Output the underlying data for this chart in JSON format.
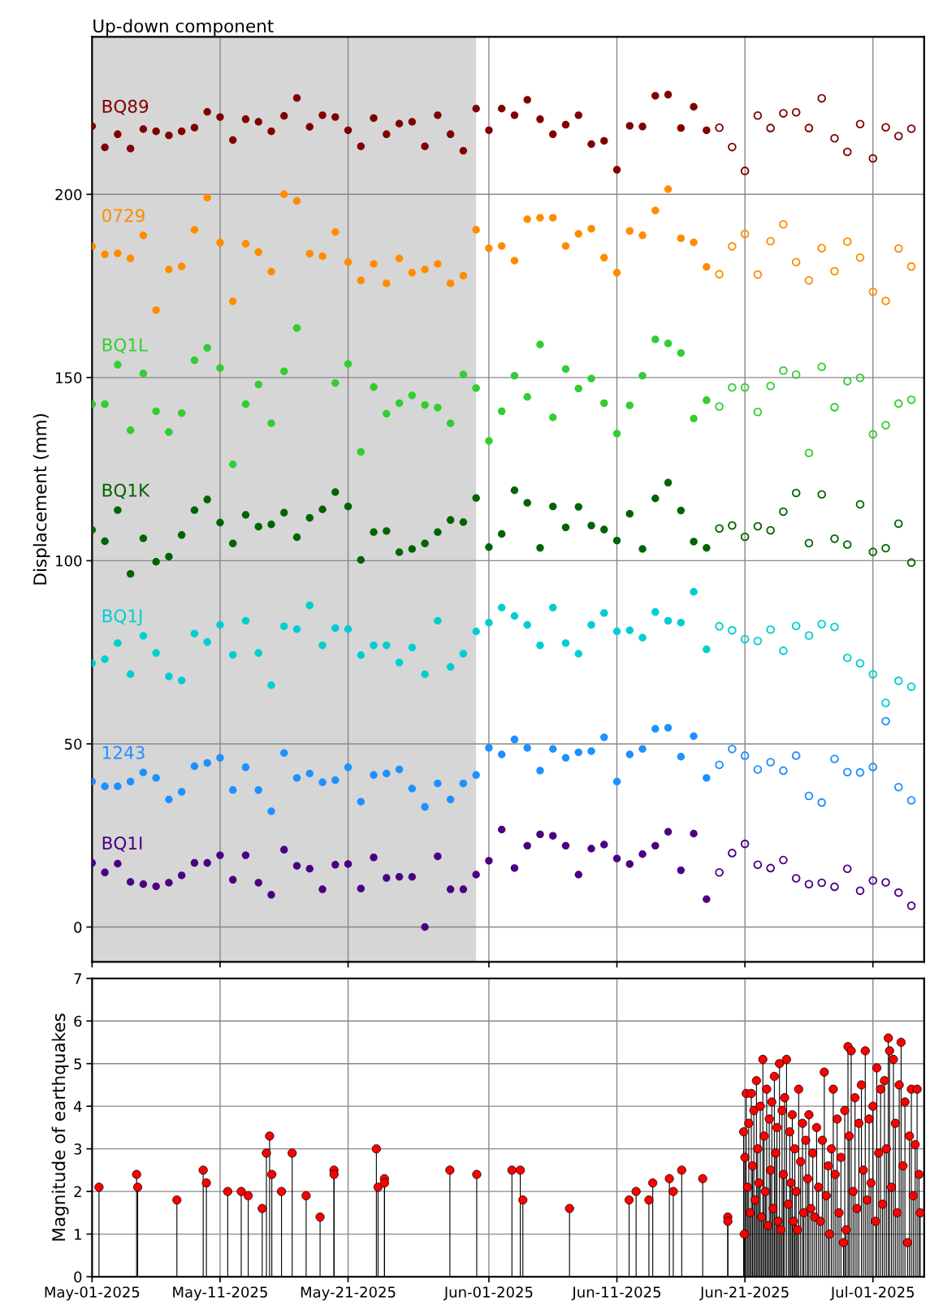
{
  "chart_data": [
    {
      "type": "scatter",
      "title": "Up-down component",
      "ylabel": "Displacement (mm)",
      "marker": "circle",
      "grid": true,
      "tick_labels": "y",
      "x": [
        "2025-05-01",
        "2025-05-02",
        "2025-05-03",
        "2025-05-04",
        "2025-05-05",
        "2025-05-06",
        "2025-05-07",
        "2025-05-08",
        "2025-05-09",
        "2025-05-10",
        "2025-05-11",
        "2025-05-12",
        "2025-05-13",
        "2025-05-14",
        "2025-05-15",
        "2025-05-16",
        "2025-05-17",
        "2025-05-18",
        "2025-05-19",
        "2025-05-20",
        "2025-05-21",
        "2025-05-22",
        "2025-05-23",
        "2025-05-24",
        "2025-05-25",
        "2025-05-26",
        "2025-05-27",
        "2025-05-28",
        "2025-05-29",
        "2025-05-30",
        "2025-05-31",
        "2025-06-01",
        "2025-06-02",
        "2025-06-03",
        "2025-06-04",
        "2025-06-05",
        "2025-06-06",
        "2025-06-07",
        "2025-06-08",
        "2025-06-09",
        "2025-06-10",
        "2025-06-11",
        "2025-06-12",
        "2025-06-13",
        "2025-06-14",
        "2025-06-15",
        "2025-06-16",
        "2025-06-17",
        "2025-06-18"
      ],
      "series": [
        {
          "name": "BQ89",
          "color": "#800000",
          "values": [
            218.6,
            212.8,
            216.4,
            212.5,
            217.8,
            217.2,
            216.1,
            217.2,
            218.2,
            222.5,
            221.1,
            214.8,
            220.5,
            219.8,
            217.2,
            221.4,
            226.3,
            218.4,
            221.6,
            221.1,
            217.5,
            213.1,
            220.8,
            216.4,
            219.3,
            219.8,
            213.1,
            221.6,
            216.4,
            211.9,
            223.4,
            217.5,
            223.4,
            221.6,
            225.8,
            220.5,
            216.4,
            219.0,
            221.6,
            213.7,
            214.6,
            206.7,
            218.7,
            218.5,
            226.9,
            227.2,
            218.1,
            223.9,
            217.5
          ]
        },
        {
          "color": "#800000",
          "x": [
            "2025-06-19",
            "2025-06-20",
            "2025-06-21",
            "2025-06-22",
            "2025-06-23",
            "2025-06-24",
            "2025-06-25",
            "2025-06-26",
            "2025-06-27",
            "2025-06-28",
            "2025-06-29",
            "2025-06-30",
            "2025-07-01",
            "2025-07-02",
            "2025-07-03",
            "2025-07-04"
          ],
          "values": [
            218.2,
            212.9,
            206.4,
            221.5,
            218.1,
            222.1,
            222.4,
            218.1,
            226.2,
            215.3,
            211.6,
            219.2,
            209.8,
            218.3,
            215.9,
            217.9
          ]
        },
        {
          "name": "0729",
          "color": "#ff8c00",
          "values": [
            185.8,
            183.6,
            183.9,
            182.5,
            188.8,
            168.4,
            179.5,
            180.3,
            190.3,
            199.1,
            186.8,
            170.8,
            186.5,
            184.2,
            178.9,
            200.0,
            198.2,
            183.8,
            183.1,
            189.7,
            181.5,
            176.5,
            181.0,
            175.7,
            182.5,
            178.6,
            179.5,
            181.0,
            175.7,
            177.8,
            190.3,
            185.3,
            185.9,
            181.9,
            193.2,
            193.6,
            193.6,
            185.9,
            189.2,
            190.6,
            182.7,
            178.6,
            190.0,
            188.8,
            195.6,
            201.4,
            188.0,
            186.9,
            180.2
          ]
        },
        {
          "color": "#ff8c00",
          "x": [
            "2025-06-19",
            "2025-06-20",
            "2025-06-21",
            "2025-06-22",
            "2025-06-23",
            "2025-06-24",
            "2025-06-25",
            "2025-06-26",
            "2025-06-27",
            "2025-06-28",
            "2025-06-29",
            "2025-06-30",
            "2025-07-01",
            "2025-07-02",
            "2025-07-03",
            "2025-07-04"
          ],
          "values": [
            178.2,
            185.8,
            189.2,
            178.1,
            187.2,
            191.8,
            181.5,
            176.5,
            185.3,
            179.0,
            187.1,
            182.7,
            173.4,
            170.9,
            185.2,
            180.3
          ]
        },
        {
          "name": "BQ1L",
          "color": "#32cd32",
          "values": [
            142.7,
            142.7,
            153.5,
            135.6,
            151.1,
            140.8,
            135.1,
            140.3,
            154.7,
            158.1,
            152.6,
            126.3,
            142.7,
            148.1,
            137.5,
            151.7,
            163.5,
            null,
            null,
            148.5,
            153.7,
            129.7,
            147.4,
            140.1,
            143.0,
            145.1,
            142.5,
            141.8,
            137.5,
            150.8,
            147.1,
            132.7,
            140.8,
            150.5,
            144.7,
            159.0,
            139.1,
            152.3,
            147.0,
            149.7,
            143.0,
            134.7,
            142.4,
            150.5,
            160.4,
            159.3,
            156.7,
            138.8,
            143.8
          ]
        },
        {
          "color": "#32cd32",
          "x": [
            "2025-06-19",
            "2025-06-20",
            "2025-06-21",
            "2025-06-22",
            "2025-06-23",
            "2025-06-24",
            "2025-06-25",
            "2025-06-26",
            "2025-06-27",
            "2025-06-28",
            "2025-06-29",
            "2025-06-30",
            "2025-07-01",
            "2025-07-02",
            "2025-07-03",
            "2025-07-04"
          ],
          "values": [
            142.1,
            147.3,
            147.3,
            140.6,
            147.7,
            151.9,
            150.8,
            129.4,
            152.9,
            141.9,
            149.0,
            149.9,
            134.5,
            137.0,
            142.9,
            143.9
          ]
        },
        {
          "name": "BQ1K",
          "color": "#006400",
          "values": [
            108.4,
            105.3,
            113.8,
            96.4,
            106.1,
            99.7,
            101.1,
            107.0,
            113.8,
            116.7,
            110.4,
            104.7,
            112.5,
            109.3,
            109.9,
            113.1,
            106.4,
            111.7,
            114.0,
            118.7,
            114.8,
            100.2,
            107.8,
            108.1,
            102.3,
            103.2,
            104.7,
            107.8,
            111.1,
            110.5,
            117.1,
            103.7,
            107.3,
            119.2,
            115.8,
            103.5,
            114.8,
            109.1,
            114.7,
            109.6,
            108.5,
            105.5,
            112.8,
            103.2,
            117.0,
            121.3,
            113.7,
            105.2,
            103.5
          ]
        },
        {
          "color": "#006400",
          "x": [
            "2025-06-19",
            "2025-06-20",
            "2025-06-21",
            "2025-06-22",
            "2025-06-23",
            "2025-06-24",
            "2025-06-25",
            "2025-06-26",
            "2025-06-27",
            "2025-06-28",
            "2025-06-29",
            "2025-06-30",
            "2025-07-01",
            "2025-07-02",
            "2025-07-03",
            "2025-07-04"
          ],
          "values": [
            108.8,
            109.6,
            106.5,
            109.4,
            108.3,
            113.4,
            118.5,
            104.8,
            118.1,
            106.0,
            104.4,
            115.4,
            102.4,
            103.4,
            110.1,
            99.5
          ]
        },
        {
          "name": "BQ1J",
          "color": "#00ced1",
          "values": [
            72.0,
            73.1,
            77.5,
            69.0,
            79.5,
            74.8,
            68.4,
            67.3,
            80.1,
            77.8,
            82.5,
            74.3,
            83.6,
            74.8,
            66.0,
            82.1,
            81.3,
            87.8,
            76.9,
            81.6,
            81.3,
            74.2,
            76.9,
            76.9,
            72.2,
            76.3,
            69.0,
            83.6,
            71.0,
            74.6,
            80.7,
            83.1,
            87.2,
            84.9,
            82.5,
            76.9,
            87.2,
            77.5,
            74.6,
            82.5,
            85.7,
            80.7,
            81.0,
            79.0,
            86.0,
            83.6,
            83.1,
            91.5,
            75.8
          ]
        },
        {
          "color": "#00ced1",
          "x": [
            "2025-06-19",
            "2025-06-20",
            "2025-06-21",
            "2025-06-22",
            "2025-06-23",
            "2025-06-24",
            "2025-06-25",
            "2025-06-26",
            "2025-06-27",
            "2025-06-28",
            "2025-06-29",
            "2025-06-30",
            "2025-07-01",
            "2025-07-02",
            "2025-07-03",
            "2025-07-04"
          ],
          "values": [
            82.1,
            81.0,
            78.6,
            78.1,
            81.2,
            75.4,
            82.2,
            79.6,
            82.7,
            81.9,
            73.5,
            72.0,
            69.0,
            61.2,
            67.2,
            65.6
          ]
        },
        {
          "name": "1243",
          "color": "#1e90ff",
          "values": [
            39.7,
            38.4,
            38.4,
            39.7,
            42.2,
            40.7,
            34.8,
            36.9,
            43.9,
            44.8,
            46.2,
            37.4,
            43.6,
            37.4,
            31.6,
            47.5,
            40.7,
            41.9,
            39.5,
            40.1,
            43.6,
            34.2,
            41.5,
            41.9,
            43.0,
            37.8,
            32.8,
            39.2,
            34.8,
            39.2,
            41.5,
            48.9,
            47.1,
            51.2,
            48.9,
            42.7,
            48.6,
            46.2,
            47.7,
            48.0,
            51.8,
            39.7,
            47.1,
            48.6,
            54.1,
            54.4,
            46.5,
            52.1,
            40.7
          ]
        },
        {
          "color": "#1e90ff",
          "x": [
            "2025-06-19",
            "2025-06-20",
            "2025-06-21",
            "2025-06-22",
            "2025-06-23",
            "2025-06-24",
            "2025-06-25",
            "2025-06-26",
            "2025-06-27",
            "2025-06-28",
            "2025-06-29",
            "2025-06-30",
            "2025-07-01",
            "2025-07-02",
            "2025-07-03",
            "2025-07-04"
          ],
          "values": [
            44.3,
            48.6,
            46.8,
            43.0,
            45.0,
            42.7,
            46.8,
            35.8,
            34.0,
            45.9,
            42.3,
            42.2,
            43.7,
            56.2,
            38.2,
            34.6
          ]
        },
        {
          "name": "BQ1I",
          "color": "#4b0082",
          "values": [
            17.5,
            14.9,
            17.3,
            12.3,
            11.7,
            11.1,
            12.1,
            14.1,
            17.5,
            17.5,
            19.6,
            12.9,
            19.6,
            12.1,
            8.8,
            21.1,
            16.7,
            15.9,
            10.3,
            17.0,
            17.2,
            10.5,
            19.0,
            13.4,
            13.7,
            13.7,
            0.0,
            19.3,
            10.3,
            10.3,
            14.3,
            18.1,
            26.6,
            16.1,
            22.2,
            25.3,
            24.9,
            22.2,
            14.3,
            21.4,
            22.5,
            18.7,
            17.2,
            19.9,
            22.2,
            26.0,
            15.5,
            25.5,
            7.6
          ]
        },
        {
          "color": "#4b0082",
          "x": [
            "2025-06-19",
            "2025-06-20",
            "2025-06-21",
            "2025-06-22",
            "2025-06-23",
            "2025-06-24",
            "2025-06-25",
            "2025-06-26",
            "2025-06-27",
            "2025-06-28",
            "2025-06-29",
            "2025-06-30",
            "2025-07-01",
            "2025-07-02",
            "2025-07-03",
            "2025-07-04"
          ],
          "values": [
            14.9,
            20.2,
            22.7,
            17.0,
            16.1,
            18.3,
            13.3,
            11.7,
            12.1,
            11.0,
            15.9,
            9.9,
            12.7,
            12.2,
            9.4,
            5.8
          ]
        }
      ],
      "bands": [
        {
          "axis": "x",
          "from": "2025-05-01",
          "to": "2025-05-31",
          "color": "#d6d6d6"
        }
      ],
      "xlim": [
        "2025-05-01",
        "2025-07-05"
      ],
      "ylim": [
        -9.5,
        243
      ],
      "xticks": [
        {
          "value": "2025-05-01",
          "label": null
        },
        {
          "value": "2025-05-11",
          "label": null
        },
        {
          "value": "2025-05-21",
          "label": null
        },
        {
          "value": "2025-06-01",
          "label": null
        },
        {
          "value": "2025-06-11",
          "label": null
        },
        {
          "value": "2025-06-21",
          "label": null
        },
        {
          "value": "2025-07-01",
          "label": null
        }
      ],
      "yticks": [
        0,
        50,
        100,
        150,
        200
      ]
    },
    {
      "type": "lollipop",
      "ylabel": "Magnitude of earthquakes",
      "marker": "circle",
      "grid": true,
      "color": "#ff0000",
      "x": [
        "2025-05-01T13:00",
        "2025-05-04T11:30",
        "2025-05-04T13:30",
        "2025-05-07T15:00",
        "2025-05-09T16:20",
        "2025-05-09T22:20",
        "2025-05-11T14:20",
        "2025-05-12T15:40",
        "2025-05-13T04:50",
        "2025-05-14T07:00",
        "2025-05-14T14:50",
        "2025-05-14T20:50",
        "2025-05-15T01:00",
        "2025-05-15T19:10",
        "2025-05-16T15:10",
        "2025-05-17T17:20",
        "2025-05-18T19:30",
        "2025-05-19T21:30",
        "2025-05-19T21:40",
        "2025-05-23T05:00",
        "2025-05-23T08:10",
        "2025-05-23T20:10",
        "2025-05-23T20:20",
        "2025-05-28T22:50",
        "2025-05-31T01:10",
        "2025-06-02T19:10",
        "2025-06-03T10:50",
        "2025-06-03T15:40",
        "2025-06-07T07:10",
        "2025-06-11T22:50",
        "2025-06-12T12:00",
        "2025-06-13T12:00",
        "2025-06-13T19:10",
        "2025-06-15T02:20",
        "2025-06-15T09:40",
        "2025-06-16T01:30",
        "2025-06-17T16:50",
        "2025-06-19T15:50",
        "2025-06-19T16:00",
        "2025-06-20T21:36",
        "2025-06-20T22:48",
        "2025-06-21T00:00",
        "2025-06-21T02:24",
        "2025-06-21T04:48",
        "2025-06-21T07:12",
        "2025-06-21T09:36",
        "2025-06-21T12:00",
        "2025-06-21T14:24",
        "2025-06-21T16:48",
        "2025-06-21T19:12",
        "2025-06-21T21:36",
        "2025-06-22T00:00",
        "2025-06-22T02:24",
        "2025-06-22T04:48",
        "2025-06-22T07:12",
        "2025-06-22T09:36",
        "2025-06-22T12:00",
        "2025-06-22T14:24",
        "2025-06-22T16:48",
        "2025-06-22T19:12",
        "2025-06-22T21:36",
        "2025-06-23T00:00",
        "2025-06-23T02:24",
        "2025-06-23T04:48",
        "2025-06-23T07:12",
        "2025-06-23T09:36",
        "2025-06-23T12:00",
        "2025-06-23T14:24",
        "2025-06-23T16:48",
        "2025-06-23T19:12",
        "2025-06-23T21:36",
        "2025-06-24T00:00",
        "2025-06-24T02:24",
        "2025-06-24T06:00",
        "2025-06-24T09:36",
        "2025-06-24T12:00",
        "2025-06-24T14:24",
        "2025-06-24T16:48",
        "2025-06-24T19:12",
        "2025-06-24T21:36",
        "2025-06-25T00:00",
        "2025-06-25T02:24",
        "2025-06-25T04:48",
        "2025-06-25T08:24",
        "2025-06-25T12:00",
        "2025-06-25T14:24",
        "2025-06-25T18:00",
        "2025-06-25T21:36",
        "2025-06-26T00:00",
        "2025-06-26T03:36",
        "2025-06-26T07:12",
        "2025-06-26T10:48",
        "2025-06-26T14:24",
        "2025-06-26T18:00",
        "2025-06-26T21:36",
        "2025-06-27T01:12",
        "2025-06-27T04:48",
        "2025-06-27T08:24",
        "2025-06-27T12:00",
        "2025-06-27T14:24",
        "2025-06-27T18:00",
        "2025-06-27T21:36",
        "2025-06-28T01:12",
        "2025-06-28T04:48",
        "2025-06-28T08:24",
        "2025-06-28T12:00",
        "2025-06-28T16:48",
        "2025-06-28T19:12",
        "2025-06-28T21:36",
        "2025-06-29T01:12",
        "2025-06-29T03:36",
        "2025-06-29T07:12",
        "2025-06-29T10:48",
        "2025-06-29T14:24",
        "2025-06-29T18:00",
        "2025-06-29T21:36",
        "2025-06-30T02:24",
        "2025-06-30T06:00",
        "2025-06-30T09:36",
        "2025-06-30T13:12",
        "2025-06-30T16:48",
        "2025-06-30T20:24",
        "2025-07-01T00:00",
        "2025-07-01T04:48",
        "2025-07-01T07:12",
        "2025-07-01T10:48",
        "2025-07-01T14:24",
        "2025-07-01T18:00",
        "2025-07-01T21:36",
        "2025-07-02T01:12",
        "2025-07-02T04:48",
        "2025-07-02T07:12",
        "2025-07-02T10:48",
        "2025-07-02T14:24",
        "2025-07-02T18:00",
        "2025-07-02T21:36",
        "2025-07-03T01:12",
        "2025-07-03T04:48",
        "2025-07-03T08:24",
        "2025-07-03T12:00",
        "2025-07-03T16:48",
        "2025-07-03T20:24",
        "2025-07-04T00:00",
        "2025-07-04T03:36",
        "2025-07-04T07:12",
        "2025-07-04T10:48",
        "2025-07-04T14:24",
        "2025-07-04T16:48"
      ],
      "values": [
        2.1,
        2.4,
        2.1,
        1.8,
        2.5,
        2.2,
        2.0,
        2.0,
        1.9,
        1.6,
        2.9,
        3.3,
        2.4,
        2.0,
        2.9,
        1.9,
        1.4,
        2.5,
        2.4,
        3.0,
        2.1,
        2.3,
        2.2,
        2.5,
        2.4,
        2.5,
        2.5,
        1.8,
        1.6,
        1.8,
        2.0,
        1.8,
        2.2,
        2.3,
        2.0,
        2.5,
        2.3,
        1.4,
        1.3,
        3.4,
        1.0,
        2.8,
        4.3,
        2.1,
        3.6,
        1.5,
        4.3,
        2.6,
        3.9,
        1.8,
        4.6,
        3.0,
        2.2,
        4.0,
        1.4,
        5.1,
        3.3,
        2.0,
        4.4,
        1.2,
        3.7,
        2.5,
        4.1,
        1.6,
        4.7,
        2.9,
        3.5,
        1.3,
        5.0,
        1.1,
        3.9,
        2.4,
        4.2,
        5.1,
        1.7,
        3.4,
        2.2,
        3.8,
        1.3,
        3.0,
        2.0,
        1.1,
        4.4,
        2.7,
        3.6,
        1.5,
        3.2,
        2.3,
        3.8,
        1.6,
        2.9,
        1.4,
        3.5,
        2.1,
        1.3,
        3.2,
        4.8,
        1.9,
        2.6,
        1.0,
        3.0,
        4.4,
        2.4,
        3.7,
        1.5,
        2.8,
        0.8,
        3.9,
        1.1,
        5.4,
        3.3,
        5.3,
        2.0,
        4.2,
        1.6,
        3.6,
        4.5,
        2.5,
        5.3,
        1.8,
        3.7,
        2.2,
        4.0,
        1.3,
        4.9,
        2.9,
        4.4,
        1.7,
        4.6,
        3.0,
        5.6,
        5.3,
        2.1,
        5.1,
        3.6,
        1.5,
        4.5,
        5.5,
        2.6,
        4.1,
        0.8,
        3.3,
        4.4,
        1.9,
        3.1,
        4.4,
        2.4,
        1.5
      ],
      "xlim": [
        "2025-05-01",
        "2025-07-05"
      ],
      "ylim": [
        0,
        7
      ],
      "xticks": [
        {
          "value": "2025-05-01",
          "label": "May-01-2025"
        },
        {
          "value": "2025-05-11",
          "label": "May-11-2025"
        },
        {
          "value": "2025-05-21",
          "label": "May-21-2025"
        },
        {
          "value": "2025-06-01",
          "label": "Jun-01-2025"
        },
        {
          "value": "2025-06-11",
          "label": "Jun-11-2025"
        },
        {
          "value": "2025-06-21",
          "label": "Jun-21-2025"
        },
        {
          "value": "2025-07-01",
          "label": "Jul-01-2025"
        }
      ],
      "yticks": [
        0,
        1,
        2,
        3,
        4,
        5,
        6,
        7
      ]
    }
  ]
}
